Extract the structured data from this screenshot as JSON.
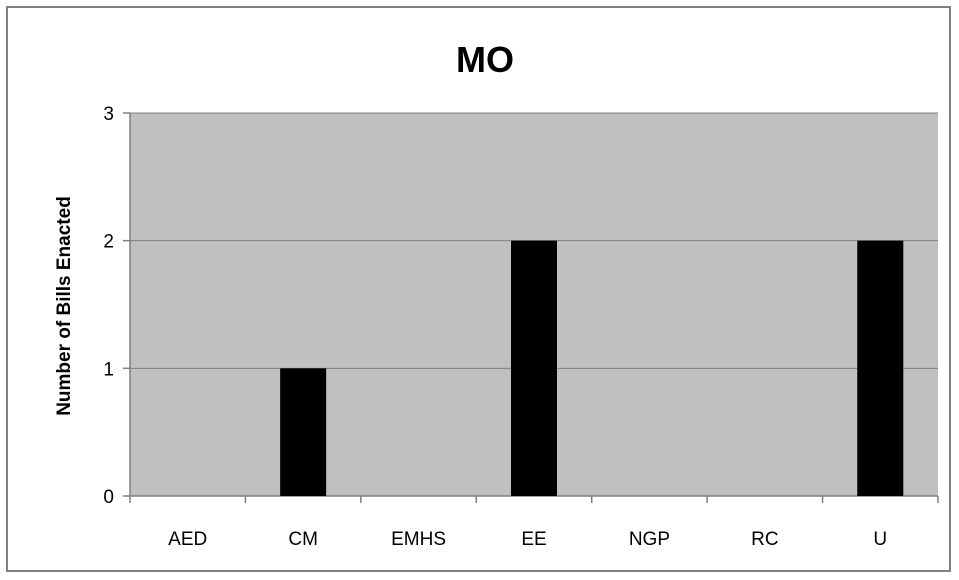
{
  "chart_data": {
    "type": "bar",
    "title": "MO",
    "xlabel": "",
    "ylabel": "Number of Bills Enacted",
    "categories": [
      "AED",
      "CM",
      "EMHS",
      "EE",
      "NGP",
      "RC",
      "U"
    ],
    "values": [
      0,
      1,
      0,
      2,
      0,
      0,
      2
    ],
    "ylim": [
      0,
      3
    ],
    "yticks": [
      0,
      1,
      2,
      3
    ],
    "grid": true,
    "legend": "none",
    "colors": {
      "bar": "#000000",
      "plot_background": "#c0c0c0",
      "gridline": "#808080"
    }
  }
}
